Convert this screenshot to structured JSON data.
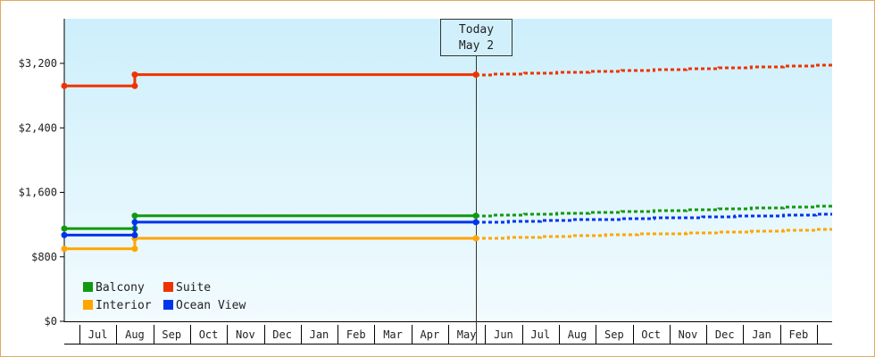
{
  "chart_data": {
    "type": "line",
    "step": true,
    "today_marker": {
      "line1": "Today",
      "line2": "May 2",
      "index": 10.25
    },
    "y_ticks": [
      {
        "value": 0,
        "label": "$0"
      },
      {
        "value": 800,
        "label": "$800"
      },
      {
        "value": 1600,
        "label": "$1,600"
      },
      {
        "value": 2400,
        "label": "$2,400"
      },
      {
        "value": 3200,
        "label": "$3,200"
      }
    ],
    "ylim": [
      0,
      3200
    ],
    "categories": [
      "Jul",
      "Aug",
      "Sep",
      "Oct",
      "Nov",
      "Dec",
      "Jan",
      "Feb",
      "Mar",
      "Apr",
      "May",
      "Jun",
      "Jul",
      "Aug",
      "Sep",
      "Oct",
      "Nov",
      "Dec",
      "Jan",
      "Feb"
    ],
    "series": [
      {
        "name": "Balcony",
        "color": "#119911",
        "history": [
          [
            -0.5,
            1150
          ],
          [
            1,
            1150
          ],
          [
            1,
            1310
          ],
          [
            10.25,
            1310
          ]
        ],
        "forecast": [
          [
            10.25,
            1310
          ],
          [
            20.5,
            1430
          ]
        ]
      },
      {
        "name": "Suite",
        "color": "#ee3300",
        "history": [
          [
            -0.5,
            2920
          ],
          [
            1,
            2920
          ],
          [
            1,
            3060
          ],
          [
            10.25,
            3060
          ]
        ],
        "forecast": [
          [
            10.25,
            3060
          ],
          [
            20.5,
            3180
          ]
        ]
      },
      {
        "name": "Interior",
        "color": "#ffa500",
        "history": [
          [
            -0.5,
            900
          ],
          [
            1,
            900
          ],
          [
            1,
            1030
          ],
          [
            10.25,
            1030
          ]
        ],
        "forecast": [
          [
            10.25,
            1030
          ],
          [
            20.5,
            1140
          ]
        ]
      },
      {
        "name": "Ocean View",
        "color": "#0033ee",
        "history": [
          [
            -0.5,
            1070
          ],
          [
            1,
            1070
          ],
          [
            1,
            1230
          ],
          [
            10.25,
            1230
          ]
        ],
        "forecast": [
          [
            10.25,
            1230
          ],
          [
            20.5,
            1330
          ]
        ]
      }
    ],
    "legend_position": "bottom-left",
    "grid": false,
    "background": [
      "#cdeffb",
      "#f2fbfe"
    ]
  }
}
